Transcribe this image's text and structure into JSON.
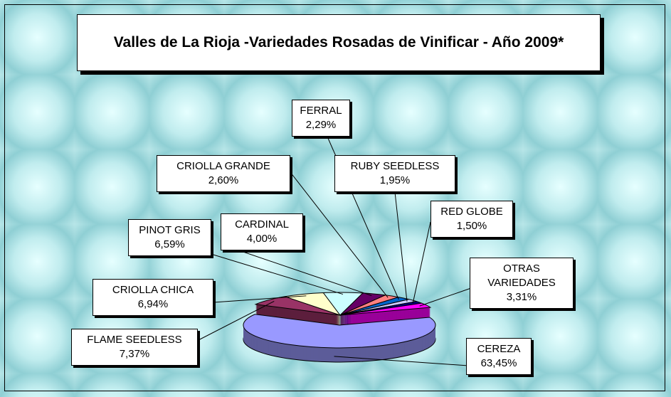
{
  "chart_data": {
    "type": "pie",
    "title": "Valles de La Rioja -Variedades Rosadas de Vinificar - Año 2009*",
    "categories": [
      "CEREZA",
      "FLAME SEEDLESS",
      "CRIOLLA CHICA",
      "PINOT GRIS",
      "CARDINAL",
      "CRIOLLA GRANDE",
      "FERRAL",
      "RUBY SEEDLESS",
      "RED GLOBE",
      "OTRAS VARIEDADES"
    ],
    "values": [
      63.45,
      7.37,
      6.94,
      6.59,
      4.0,
      2.6,
      2.29,
      1.95,
      1.5,
      3.31
    ],
    "value_labels": [
      "63,45%",
      "7,37%",
      "6,94%",
      "6,59%",
      "4,00%",
      "2,60%",
      "2,29%",
      "1,95%",
      "1,50%",
      "3,31%"
    ],
    "colors": [
      "#9999ff",
      "#993366",
      "#ffffcc",
      "#ccffff",
      "#660066",
      "#ff8080",
      "#0066cc",
      "#ccccff",
      "#000080",
      "#ff00ff"
    ]
  }
}
